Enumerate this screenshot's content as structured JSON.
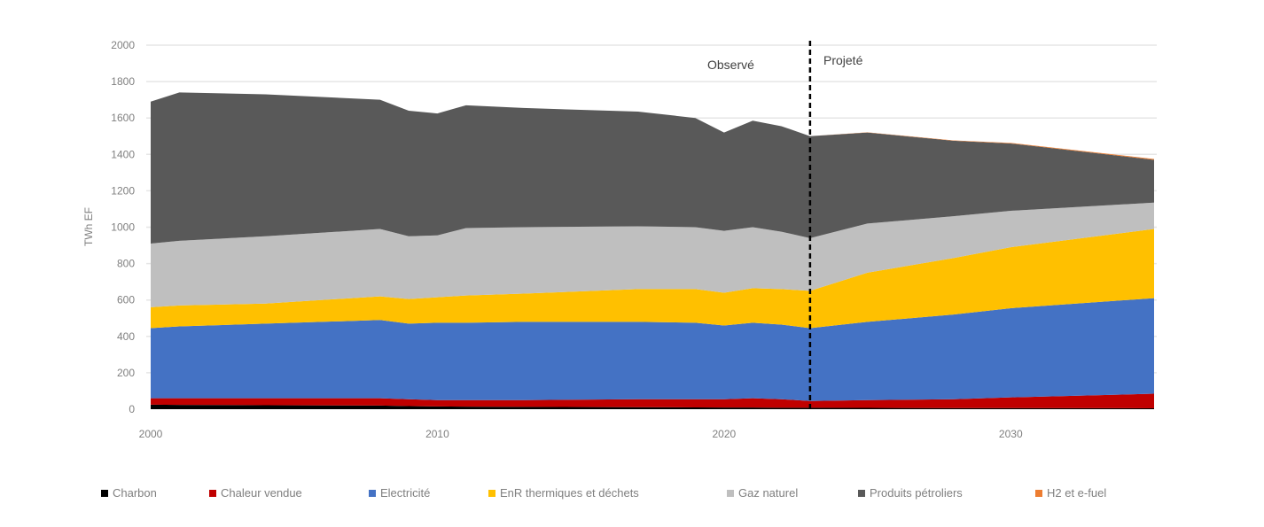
{
  "chart_data": {
    "type": "area",
    "stacked": true,
    "title": "",
    "xlabel": "",
    "ylabel": "TWh EF",
    "ylim": [
      0,
      2000
    ],
    "xlim": [
      2000,
      2035
    ],
    "y_ticks": [
      "0",
      "200",
      "400",
      "600",
      "800",
      "1000",
      "1200",
      "1400",
      "1600",
      "1800",
      "2000"
    ],
    "x_ticks": [
      "2000",
      "2010",
      "2020",
      "2030"
    ],
    "grid": true,
    "legend_position": "bottom",
    "annotations": {
      "observed": "Observé",
      "projected": "Projeté",
      "divider_year": 2023
    },
    "x": [
      2000,
      2001,
      2004,
      2008,
      2009,
      2010,
      2011,
      2013,
      2017,
      2019,
      2020,
      2021,
      2022,
      2023,
      2025,
      2028,
      2030,
      2035
    ],
    "series": [
      {
        "name": "Charbon",
        "color": "#000000",
        "values": [
          25,
          24,
          22,
          20,
          17,
          15,
          14,
          13,
          11,
          10,
          9,
          9,
          8,
          8,
          7,
          6,
          6,
          5
        ]
      },
      {
        "name": "Chaleur vendue",
        "color": "#c00000",
        "values": [
          35,
          36,
          38,
          40,
          38,
          35,
          36,
          37,
          44,
          45,
          46,
          51,
          47,
          37,
          43,
          49,
          59,
          80
        ]
      },
      {
        "name": "Electricité",
        "color": "#4472c4",
        "values": [
          385,
          395,
          410,
          430,
          415,
          425,
          425,
          430,
          425,
          420,
          405,
          415,
          410,
          400,
          430,
          465,
          490,
          525
        ]
      },
      {
        "name": "EnR thermiques et déchets",
        "color": "#ffc000",
        "values": [
          115,
          115,
          110,
          130,
          135,
          140,
          150,
          155,
          180,
          185,
          180,
          190,
          195,
          205,
          270,
          310,
          335,
          380
        ]
      },
      {
        "name": "Gaz naturel",
        "color": "#bfbfbf",
        "values": [
          350,
          355,
          370,
          370,
          345,
          340,
          370,
          365,
          345,
          340,
          340,
          335,
          315,
          290,
          270,
          230,
          200,
          145
        ]
      },
      {
        "name": "Produits pétroliers",
        "color": "#595959",
        "values": [
          780,
          815,
          780,
          710,
          690,
          670,
          675,
          655,
          630,
          600,
          540,
          585,
          580,
          560,
          500,
          415,
          370,
          235
        ]
      },
      {
        "name": "H2 et e-fuel",
        "color": "#ed7d31",
        "values": [
          0,
          0,
          0,
          0,
          0,
          0,
          0,
          0,
          0,
          0,
          0,
          0,
          0,
          0,
          1,
          2,
          3,
          5
        ]
      }
    ]
  }
}
